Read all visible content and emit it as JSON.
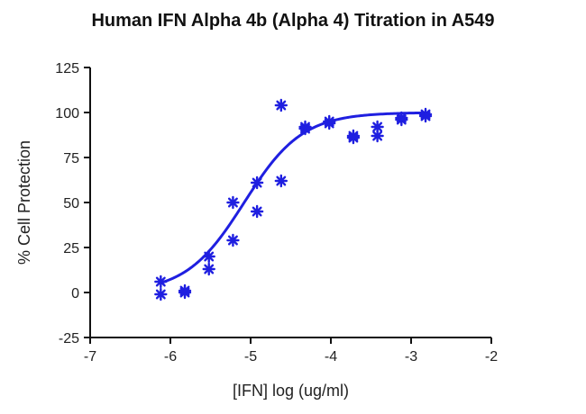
{
  "chart_data": {
    "type": "scatter",
    "title": "Human IFN Alpha 4b (Alpha 4) Titration in A549",
    "xlabel": "[IFN] log (ug/ml)",
    "ylabel": "% Cell Protection",
    "xlim": [
      -7,
      -2
    ],
    "ylim": [
      -25,
      125
    ],
    "xticks": [
      -7,
      -6,
      -5,
      -4,
      -3,
      -2
    ],
    "yticks": [
      -25,
      0,
      25,
      50,
      75,
      100,
      125
    ],
    "xtick_labels": [
      "-7",
      "-6",
      "-5",
      "-4",
      "-3",
      "-2"
    ],
    "ytick_labels": [
      "-25",
      "0",
      "25",
      "50",
      "75",
      "100",
      "125"
    ],
    "grid": false,
    "series": [
      {
        "color": "#1f1fe0",
        "marker": "asterisk",
        "points": [
          {
            "x": -6.12,
            "y": 6
          },
          {
            "x": -6.12,
            "y": -1
          },
          {
            "x": -5.82,
            "y": 0
          },
          {
            "x": -5.82,
            "y": 1
          },
          {
            "x": -5.52,
            "y": 20
          },
          {
            "x": -5.52,
            "y": 13
          },
          {
            "x": -5.22,
            "y": 50
          },
          {
            "x": -5.22,
            "y": 29
          },
          {
            "x": -4.92,
            "y": 61
          },
          {
            "x": -4.92,
            "y": 45
          },
          {
            "x": -4.62,
            "y": 104
          },
          {
            "x": -4.62,
            "y": 62
          },
          {
            "x": -4.32,
            "y": 92
          },
          {
            "x": -4.32,
            "y": 91
          },
          {
            "x": -4.02,
            "y": 95
          },
          {
            "x": -4.02,
            "y": 94
          },
          {
            "x": -3.72,
            "y": 87
          },
          {
            "x": -3.72,
            "y": 86
          },
          {
            "x": -3.42,
            "y": 92
          },
          {
            "x": -3.42,
            "y": 87
          },
          {
            "x": -3.12,
            "y": 97
          },
          {
            "x": -3.12,
            "y": 96
          },
          {
            "x": -2.82,
            "y": 99
          },
          {
            "x": -2.82,
            "y": 98
          }
        ]
      }
    ],
    "fit_curve": {
      "type": "sigmoidal",
      "color": "#1f1fe0",
      "x_range": [
        -6.12,
        -2.82
      ],
      "bottom": 0,
      "top": 100,
      "log_ec50": -5.08,
      "hill_slope": 1.2
    }
  }
}
